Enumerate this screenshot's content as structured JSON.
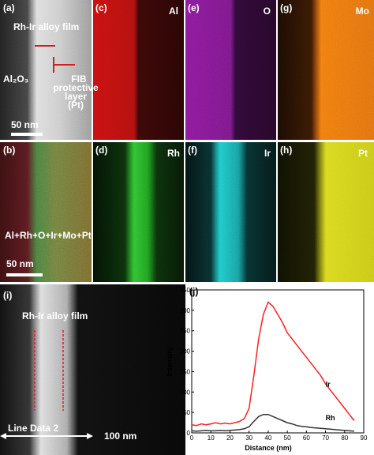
{
  "panels": {
    "a": {
      "label": "(a)",
      "film": "Rh-Ir alloy film",
      "substrate": "Al₂O₃",
      "protective": [
        "FIB",
        "protective",
        "layer",
        "(Pt)"
      ],
      "scale": "50 nm"
    },
    "c": {
      "label": "(c)",
      "element": "Al"
    },
    "e": {
      "label": "(e)",
      "element": "O"
    },
    "g": {
      "label": "(g)",
      "element": "Mo"
    },
    "b": {
      "label": "(b)",
      "elements": "Al+Rh+O+Ir+Mo+Pt",
      "scale": "50 nm"
    },
    "d": {
      "label": "(d)",
      "element": "Rh"
    },
    "f": {
      "label": "(f)",
      "element": "Ir"
    },
    "h": {
      "label": "(h)",
      "element": "Pt"
    },
    "i": {
      "label": "(i)",
      "film": "Rh-Ir alloy film",
      "line": "Line Data 2",
      "scale": "100 nm"
    }
  },
  "chart_data": {
    "type": "line",
    "label": "(j)",
    "x_label": "Distance (nm)",
    "y_label": "Intensity",
    "x": [
      0,
      2.5,
      5,
      7.5,
      10,
      12.5,
      15,
      17.5,
      20,
      22.5,
      25,
      27.5,
      30,
      32.5,
      35,
      37.5,
      40,
      42.5,
      45,
      47.5,
      50,
      52.5,
      55,
      57.5,
      60,
      62.5,
      65,
      67.5,
      70,
      72.5,
      75,
      77.5,
      80,
      82.5,
      85
    ],
    "series": [
      {
        "name": "Ir",
        "color": "#ff2020",
        "values": [
          20,
          18,
          22,
          20,
          22,
          25,
          22,
          24,
          22,
          25,
          28,
          35,
          60,
          140,
          230,
          290,
          320,
          310,
          290,
          270,
          245,
          230,
          215,
          200,
          185,
          170,
          155,
          140,
          120,
          105,
          90,
          75,
          60,
          45,
          30
        ]
      },
      {
        "name": "Rh",
        "color": "#333333",
        "values": [
          5,
          4,
          5,
          6,
          5,
          5,
          6,
          5,
          6,
          7,
          8,
          10,
          15,
          28,
          40,
          45,
          45,
          40,
          35,
          30,
          25,
          22,
          18,
          16,
          15,
          13,
          12,
          11,
          10,
          9,
          8,
          7,
          6,
          5,
          4
        ]
      }
    ],
    "xlim": [
      0,
      90
    ],
    "ylim": [
      0,
      350
    ],
    "xticks": [
      0,
      10,
      20,
      30,
      40,
      50,
      60,
      70,
      80,
      90
    ],
    "yticks": [
      0,
      50,
      100,
      150,
      200,
      250,
      300,
      350
    ]
  }
}
